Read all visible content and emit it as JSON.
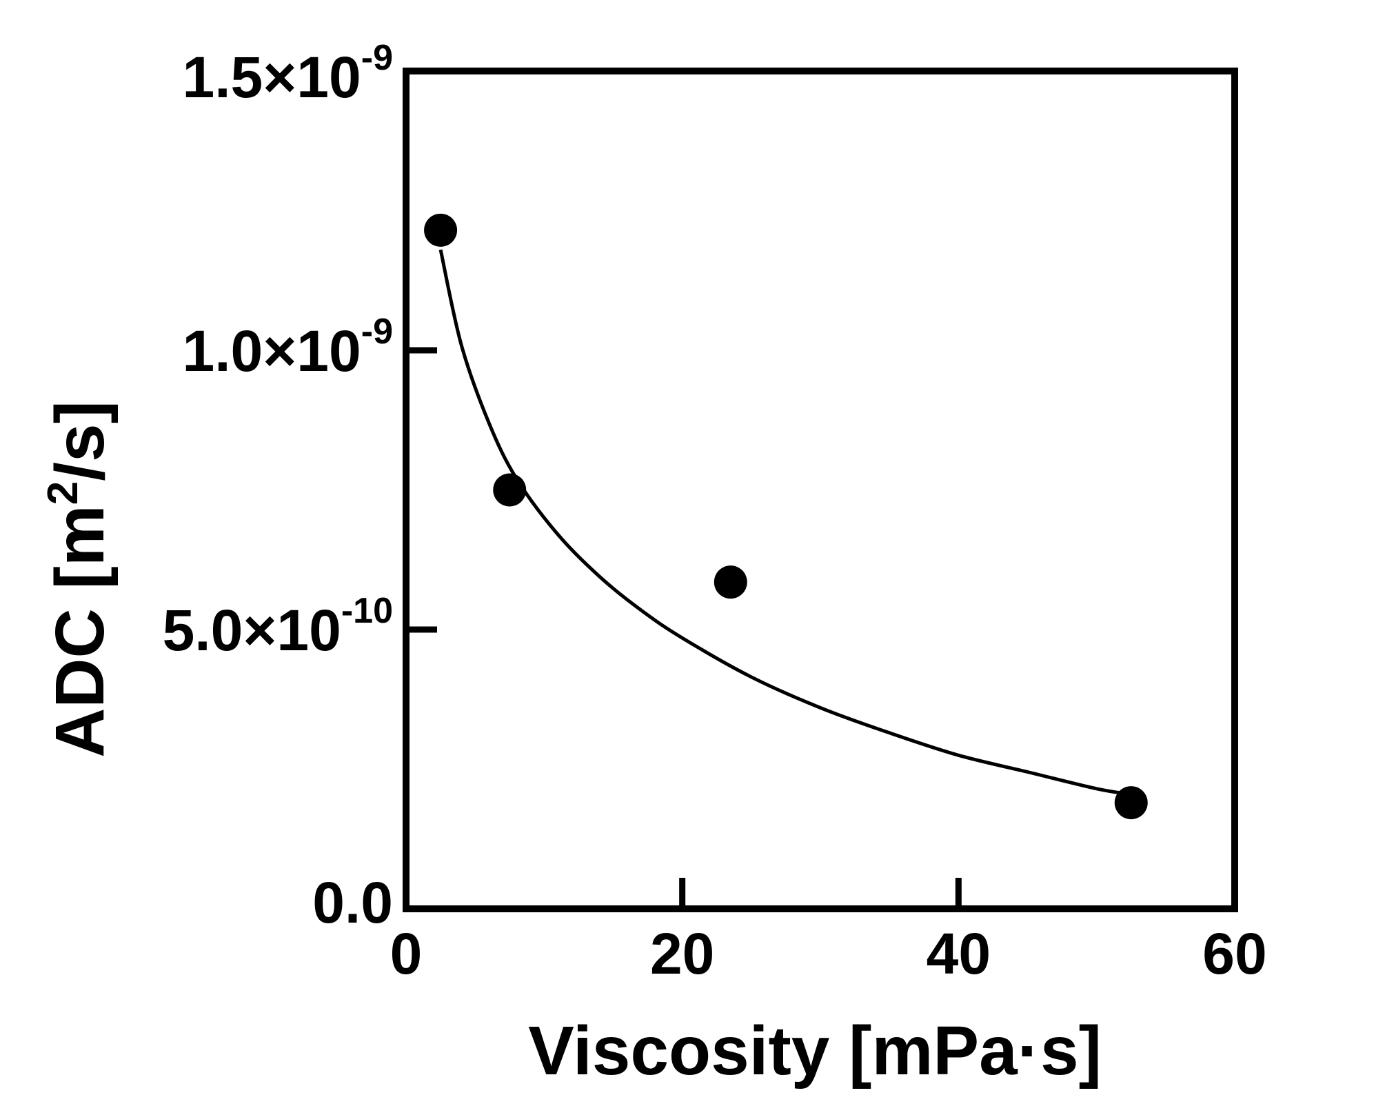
{
  "chart_data": {
    "type": "scatter",
    "title": "",
    "xlabel": "Viscosity [mPa·s]",
    "ylabel": {
      "main": "ADC [m",
      "sup": "2",
      "tail": "/s]"
    },
    "xlim": [
      0,
      60
    ],
    "ylim": [
      0,
      1.5e-09
    ],
    "x_ticks": [
      {
        "value": 0,
        "label": "0"
      },
      {
        "value": 20,
        "label": "20"
      },
      {
        "value": 40,
        "label": "40"
      },
      {
        "value": 60,
        "label": "60"
      }
    ],
    "y_ticks": [
      {
        "value": 0,
        "mant": "0.0",
        "exp": ""
      },
      {
        "value": 5e-10,
        "mant": "5.0×10",
        "exp": "-10"
      },
      {
        "value": 1e-09,
        "mant": "1.0×10",
        "exp": "-9"
      },
      {
        "value": 1.5e-09,
        "mant": "1.5×10",
        "exp": "-9"
      }
    ],
    "series": [
      {
        "kind": "points",
        "x": [
          2.5,
          7.5,
          23.5,
          52.5
        ],
        "y": [
          1.215e-09,
          7.5e-10,
          5.85e-10,
          1.9e-10
        ]
      },
      {
        "kind": "fit-curve",
        "x": [
          2.5,
          4,
          6,
          8,
          11,
          14,
          17,
          20,
          25,
          30,
          35,
          40,
          45,
          50,
          52.5
        ],
        "y": [
          1.18e-09,
          1.01e-09,
          8.7e-10,
          7.7e-10,
          6.7e-10,
          5.95e-10,
          5.35e-10,
          4.85e-10,
          4.15e-10,
          3.6e-10,
          3.15e-10,
          2.75e-10,
          2.45e-10,
          2.15e-10,
          2.05e-10
        ]
      }
    ],
    "grid": false,
    "legend": "none",
    "colors": {
      "marker": "#000000",
      "line": "#000000",
      "frame": "#000000"
    }
  }
}
